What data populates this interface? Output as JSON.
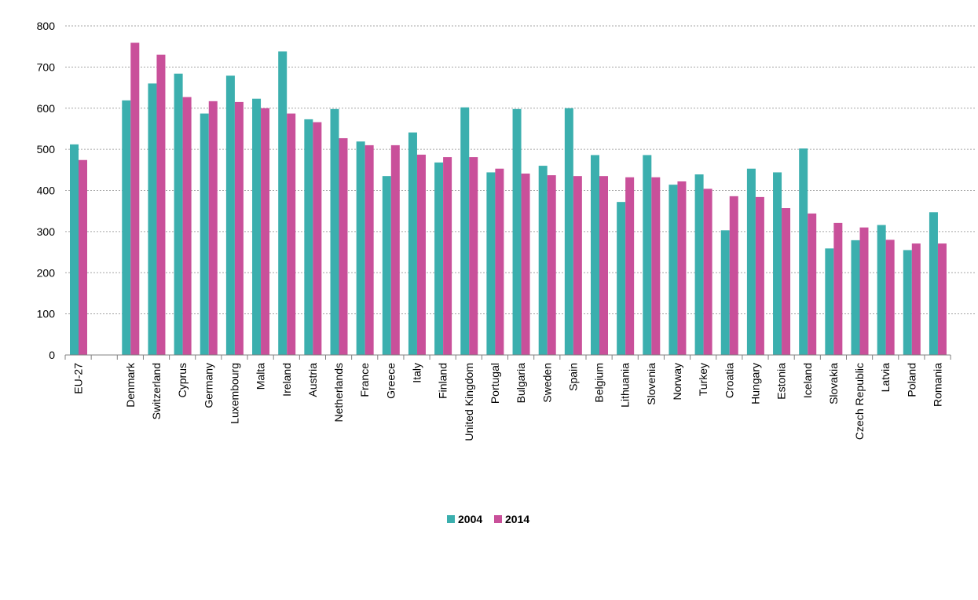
{
  "chart_data": {
    "type": "bar",
    "title": "",
    "xlabel": "",
    "ylabel": "",
    "ylim": [
      0,
      800
    ],
    "yticks": [
      0,
      100,
      200,
      300,
      400,
      500,
      600,
      700,
      800
    ],
    "grid": "horizontal dashed",
    "legend_position": "bottom-center",
    "categories": [
      "EU-27",
      "",
      "Denmark",
      "Switzerland",
      "Cyprus",
      "Germany",
      "Luxembourg",
      "Malta",
      "Ireland",
      "Austria",
      "Netherlands",
      "France",
      "Greece",
      "Italy",
      "Finland",
      "United Kingdom",
      "Portugal",
      "Bulgaria",
      "Sweden",
      "Spain",
      "Belgium",
      "Lithuania",
      "Slovenia",
      "Norway",
      "Turkey",
      "Croatia",
      "Hungary",
      "Estonia",
      "Iceland",
      "Slovakia",
      "Czech Republic",
      "Latvia",
      "Poland",
      "Romania"
    ],
    "series": [
      {
        "name": "2004",
        "color": "#3BAFAE",
        "values": [
          512,
          null,
          619,
          660,
          684,
          587,
          679,
          623,
          738,
          573,
          598,
          519,
          435,
          541,
          468,
          602,
          444,
          598,
          460,
          600,
          486,
          372,
          486,
          414,
          439,
          303,
          453,
          444,
          502,
          259,
          279,
          316,
          255,
          347
        ]
      },
      {
        "name": "2014",
        "color": "#C9509A",
        "values": [
          474,
          null,
          759,
          730,
          627,
          617,
          615,
          600,
          587,
          566,
          527,
          510,
          510,
          487,
          481,
          481,
          453,
          441,
          437,
          435,
          435,
          432,
          432,
          422,
          404,
          386,
          384,
          357,
          344,
          321,
          310,
          280,
          271,
          271
        ]
      }
    ]
  }
}
